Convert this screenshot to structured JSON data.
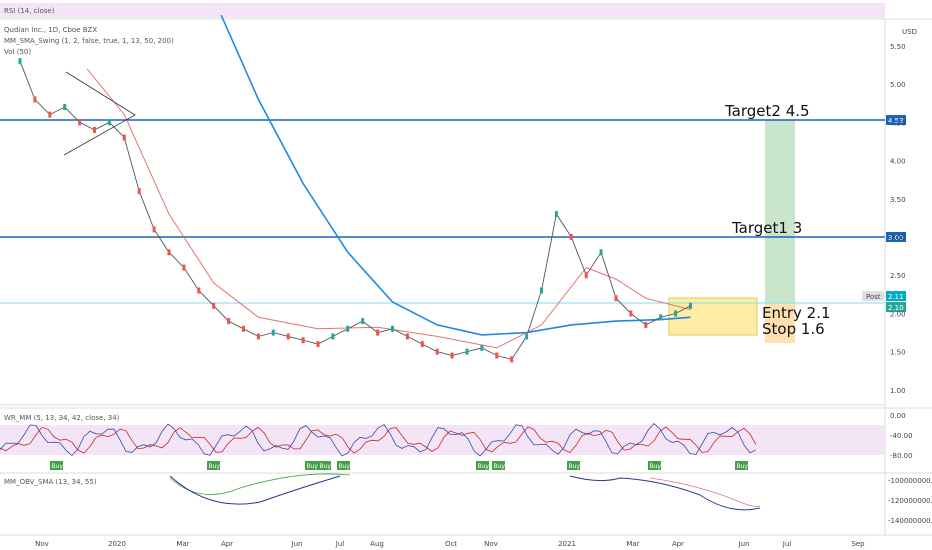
{
  "header": {
    "rsi_label": "RSI (14, close)",
    "symbol_label": "Qudian Inc., 1D, Cboe BZX",
    "indicator_label": "MM_SMA_Swing (1, 2, false, true, 1, 13, 50, 200)",
    "vol_label": "Vol (50)",
    "currency": "USD"
  },
  "chart_data": {
    "type": "line",
    "title": "Qudian Inc., 1D, Cboe BZX",
    "y_axis_ticks": [
      "5.50",
      "5.00",
      "4.50",
      "4.00",
      "3.50",
      "3.00",
      "2.50",
      "2.00",
      "1.50",
      "1.00"
    ],
    "x_axis_ticks": [
      "Nov",
      "2020",
      "Mar",
      "Apr",
      "Jun",
      "Jul",
      "Aug",
      "Oct",
      "Nov",
      "2021",
      "Mar",
      "Apr",
      "Jun",
      "Jul",
      "Sep"
    ],
    "ylim": [
      0.8,
      5.9
    ],
    "horizontal_levels": [
      {
        "value": 4.53,
        "label": "4.53",
        "note": "Target2 4.5"
      },
      {
        "value": 3.0,
        "label": "3.00",
        "note": "Target1 3"
      }
    ],
    "entry_note": "Entry 2.1",
    "stop_note": "Stop 1.6",
    "post_badge": "Post",
    "last_price": "2.11",
    "last_price_alt": "2.10",
    "close_series": [
      {
        "x": 0.0,
        "y": 5.3
      },
      {
        "x": 0.02,
        "y": 4.8
      },
      {
        "x": 0.04,
        "y": 4.6
      },
      {
        "x": 0.06,
        "y": 4.7
      },
      {
        "x": 0.08,
        "y": 4.5
      },
      {
        "x": 0.1,
        "y": 4.4
      },
      {
        "x": 0.12,
        "y": 4.5
      },
      {
        "x": 0.14,
        "y": 4.3
      },
      {
        "x": 0.16,
        "y": 3.6
      },
      {
        "x": 0.18,
        "y": 3.1
      },
      {
        "x": 0.2,
        "y": 2.8
      },
      {
        "x": 0.22,
        "y": 2.6
      },
      {
        "x": 0.24,
        "y": 2.3
      },
      {
        "x": 0.26,
        "y": 2.1
      },
      {
        "x": 0.28,
        "y": 1.9
      },
      {
        "x": 0.3,
        "y": 1.8
      },
      {
        "x": 0.32,
        "y": 1.7
      },
      {
        "x": 0.34,
        "y": 1.75
      },
      {
        "x": 0.36,
        "y": 1.7
      },
      {
        "x": 0.38,
        "y": 1.65
      },
      {
        "x": 0.4,
        "y": 1.6
      },
      {
        "x": 0.42,
        "y": 1.7
      },
      {
        "x": 0.44,
        "y": 1.8
      },
      {
        "x": 0.46,
        "y": 1.9
      },
      {
        "x": 0.48,
        "y": 1.75
      },
      {
        "x": 0.5,
        "y": 1.8
      },
      {
        "x": 0.52,
        "y": 1.7
      },
      {
        "x": 0.54,
        "y": 1.6
      },
      {
        "x": 0.56,
        "y": 1.5
      },
      {
        "x": 0.58,
        "y": 1.45
      },
      {
        "x": 0.6,
        "y": 1.5
      },
      {
        "x": 0.62,
        "y": 1.55
      },
      {
        "x": 0.64,
        "y": 1.45
      },
      {
        "x": 0.66,
        "y": 1.4
      },
      {
        "x": 0.68,
        "y": 1.7
      },
      {
        "x": 0.7,
        "y": 2.3
      },
      {
        "x": 0.72,
        "y": 3.3
      },
      {
        "x": 0.74,
        "y": 3.0
      },
      {
        "x": 0.76,
        "y": 2.5
      },
      {
        "x": 0.78,
        "y": 2.8
      },
      {
        "x": 0.8,
        "y": 2.2
      },
      {
        "x": 0.82,
        "y": 2.0
      },
      {
        "x": 0.84,
        "y": 1.85
      },
      {
        "x": 0.86,
        "y": 1.95
      },
      {
        "x": 0.88,
        "y": 2.0
      },
      {
        "x": 0.9,
        "y": 2.1
      }
    ],
    "sma200_series": [
      {
        "x": 0.27,
        "y": 5.9
      },
      {
        "x": 0.32,
        "y": 4.8
      },
      {
        "x": 0.38,
        "y": 3.7
      },
      {
        "x": 0.44,
        "y": 2.8
      },
      {
        "x": 0.5,
        "y": 2.15
      },
      {
        "x": 0.56,
        "y": 1.85
      },
      {
        "x": 0.62,
        "y": 1.72
      },
      {
        "x": 0.68,
        "y": 1.75
      },
      {
        "x": 0.74,
        "y": 1.85
      },
      {
        "x": 0.8,
        "y": 1.9
      },
      {
        "x": 0.86,
        "y": 1.92
      },
      {
        "x": 0.9,
        "y": 1.95
      }
    ],
    "sma50_series": [
      {
        "x": 0.09,
        "y": 5.2
      },
      {
        "x": 0.14,
        "y": 4.6
      },
      {
        "x": 0.2,
        "y": 3.3
      },
      {
        "x": 0.26,
        "y": 2.4
      },
      {
        "x": 0.32,
        "y": 1.95
      },
      {
        "x": 0.4,
        "y": 1.8
      },
      {
        "x": 0.48,
        "y": 1.82
      },
      {
        "x": 0.56,
        "y": 1.7
      },
      {
        "x": 0.64,
        "y": 1.55
      },
      {
        "x": 0.7,
        "y": 1.85
      },
      {
        "x": 0.76,
        "y": 2.6
      },
      {
        "x": 0.8,
        "y": 2.45
      },
      {
        "x": 0.84,
        "y": 2.2
      },
      {
        "x": 0.9,
        "y": 2.05
      }
    ]
  },
  "wr_panel": {
    "label": "WR_MM (5, 13, 34, 42, close, 34)",
    "ticks": [
      "0.00",
      "-40.00",
      "-80.00"
    ],
    "buy_label": "Buy"
  },
  "obv_panel": {
    "label": "MM_OBV_SMA (13, 34, 55)",
    "ticks": [
      "-100000000.00",
      "-120000000.00",
      "-140000000.00"
    ]
  },
  "colors": {
    "sma200": "#1e88e5",
    "sma50": "#e57373",
    "sma13": "#9c27b0",
    "hline": "#1565c0",
    "target_zone": "#a5d6a7",
    "stop_zone": "#ffcc80",
    "entry_box": "#ffe680",
    "buy_badge": "#43a047",
    "candle_up": "#26a69a",
    "candle_down": "#ef5350"
  }
}
